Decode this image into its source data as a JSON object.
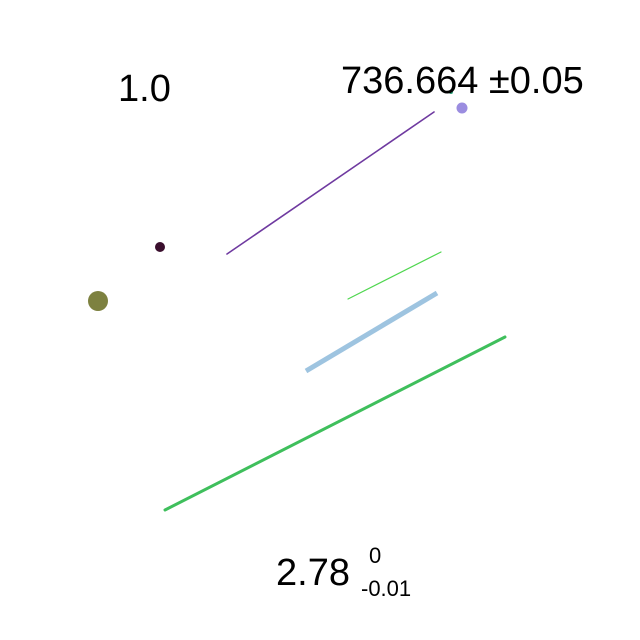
{
  "labels": {
    "top_left": "1.0",
    "top_right": "736.664 ±0.05",
    "bottom_value": "2.78",
    "bottom_sup": "0",
    "bottom_sub": "-0.01"
  },
  "colors": {
    "purple_line": "#6f3aa0",
    "light_green_line": "#4fd64f",
    "light_blue_line": "#9ec4e0",
    "green_line": "#3fbf5c",
    "dark_dot": "#3a0f2e",
    "olive_dot": "#7d8140",
    "lavender_dot": "#9b8de0",
    "teal_dot": "#2fa37a"
  }
}
